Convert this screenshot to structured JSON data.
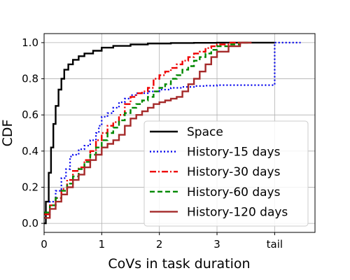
{
  "chart_data": {
    "type": "line",
    "title": "",
    "xlabel": "CoVs in task duration",
    "ylabel": "CDF",
    "xlim": [
      0,
      4.7
    ],
    "ylim": [
      -0.05,
      1.05
    ],
    "xticks": [
      {
        "value": 0,
        "label": "0"
      },
      {
        "value": 1,
        "label": "1"
      },
      {
        "value": 2,
        "label": "2"
      },
      {
        "value": 3,
        "label": "3"
      },
      {
        "value": 4,
        "label": "tail"
      }
    ],
    "yticks": [
      {
        "value": 0.0,
        "label": "0.0"
      },
      {
        "value": 0.2,
        "label": "0.2"
      },
      {
        "value": 0.4,
        "label": "0.4"
      },
      {
        "value": 0.6,
        "label": "0.6"
      },
      {
        "value": 0.8,
        "label": "0.8"
      },
      {
        "value": 1.0,
        "label": "1.0"
      }
    ],
    "grid": true,
    "legend_position": "bottom-right",
    "series": [
      {
        "name": "Space",
        "color": "#000000",
        "style": "solid",
        "x": [
          0,
          0.03,
          0.08,
          0.12,
          0.16,
          0.2,
          0.25,
          0.3,
          0.35,
          0.42,
          0.5,
          0.6,
          0.7,
          0.85,
          1.0,
          1.2,
          1.5,
          1.8,
          2.2,
          2.6,
          3.0,
          3.5,
          4.0
        ],
        "y": [
          0.0,
          0.12,
          0.28,
          0.42,
          0.55,
          0.65,
          0.74,
          0.8,
          0.85,
          0.88,
          0.905,
          0.925,
          0.94,
          0.955,
          0.972,
          0.982,
          0.99,
          0.995,
          0.998,
          0.999,
          1.0,
          1.0,
          1.0
        ]
      },
      {
        "name": "History-15 days",
        "color": "#0000ee",
        "style": "dotted",
        "x": [
          0,
          0.1,
          0.2,
          0.3,
          0.38,
          0.45,
          0.5,
          0.6,
          0.7,
          0.8,
          0.9,
          0.95,
          1.0,
          1.1,
          1.2,
          1.3,
          1.4,
          1.5,
          1.6,
          1.8,
          2.0,
          2.2,
          2.4,
          2.6,
          2.8,
          3.0,
          3.2,
          3.5,
          3.8,
          3.99,
          4.0,
          4.1,
          4.3,
          4.45
        ],
        "y": [
          0.05,
          0.12,
          0.18,
          0.25,
          0.3,
          0.37,
          0.38,
          0.41,
          0.43,
          0.46,
          0.5,
          0.54,
          0.59,
          0.61,
          0.64,
          0.67,
          0.69,
          0.71,
          0.72,
          0.73,
          0.74,
          0.75,
          0.755,
          0.76,
          0.762,
          0.765,
          0.765,
          0.765,
          0.765,
          0.765,
          1.0,
          1.0,
          1.0,
          1.0
        ]
      },
      {
        "name": "History-30 days",
        "color": "#ee0000",
        "style": "dashdot",
        "x": [
          0,
          0.1,
          0.2,
          0.3,
          0.4,
          0.5,
          0.6,
          0.7,
          0.8,
          0.9,
          1.0,
          1.1,
          1.2,
          1.3,
          1.4,
          1.5,
          1.6,
          1.7,
          1.8,
          1.9,
          2.0,
          2.1,
          2.2,
          2.3,
          2.4,
          2.5,
          2.6,
          2.7,
          2.8,
          2.9,
          3.0,
          3.2,
          3.4,
          3.6
        ],
        "y": [
          0.05,
          0.1,
          0.14,
          0.19,
          0.24,
          0.29,
          0.31,
          0.35,
          0.4,
          0.46,
          0.5,
          0.54,
          0.56,
          0.6,
          0.66,
          0.7,
          0.72,
          0.73,
          0.75,
          0.8,
          0.82,
          0.84,
          0.86,
          0.88,
          0.9,
          0.92,
          0.94,
          0.95,
          0.97,
          0.98,
          0.99,
          1.0,
          1.0,
          1.0
        ]
      },
      {
        "name": "History-60 days",
        "color": "#008800",
        "style": "dashed",
        "x": [
          0,
          0.1,
          0.2,
          0.3,
          0.4,
          0.5,
          0.6,
          0.7,
          0.8,
          0.9,
          1.0,
          1.1,
          1.2,
          1.3,
          1.4,
          1.5,
          1.6,
          1.7,
          1.8,
          1.9,
          2.0,
          2.1,
          2.2,
          2.3,
          2.4,
          2.5,
          2.6,
          2.7,
          2.8,
          2.9,
          3.0,
          3.2,
          3.4,
          3.6
        ],
        "y": [
          0.06,
          0.1,
          0.14,
          0.18,
          0.22,
          0.26,
          0.3,
          0.34,
          0.38,
          0.42,
          0.46,
          0.5,
          0.53,
          0.57,
          0.61,
          0.64,
          0.66,
          0.68,
          0.7,
          0.73,
          0.75,
          0.77,
          0.8,
          0.82,
          0.85,
          0.87,
          0.9,
          0.92,
          0.94,
          0.96,
          0.98,
          0.99,
          1.0,
          1.0
        ]
      },
      {
        "name": "History-120 days",
        "color": "#a52a2a",
        "style": "solid",
        "x": [
          0,
          0.1,
          0.2,
          0.3,
          0.4,
          0.5,
          0.6,
          0.7,
          0.8,
          0.9,
          1.0,
          1.1,
          1.2,
          1.3,
          1.4,
          1.5,
          1.6,
          1.7,
          1.8,
          1.9,
          2.0,
          2.1,
          2.2,
          2.3,
          2.4,
          2.5,
          2.6,
          2.7,
          2.8,
          2.9,
          3.0,
          3.2,
          3.4,
          3.6
        ],
        "y": [
          0.03,
          0.08,
          0.12,
          0.16,
          0.2,
          0.24,
          0.27,
          0.31,
          0.35,
          0.38,
          0.42,
          0.44,
          0.46,
          0.49,
          0.54,
          0.58,
          0.6,
          0.62,
          0.64,
          0.66,
          0.67,
          0.68,
          0.69,
          0.7,
          0.73,
          0.77,
          0.8,
          0.84,
          0.88,
          0.92,
          0.95,
          0.98,
          1.0,
          1.0
        ]
      }
    ]
  }
}
